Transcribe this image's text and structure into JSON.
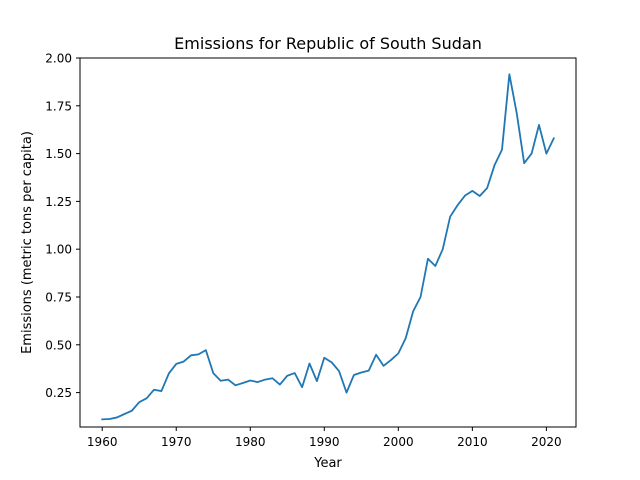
{
  "chart_data": {
    "type": "line",
    "title": "Emissions for Republic of South Sudan",
    "xlabel": "Year",
    "ylabel": "Emissions (metric tons per capita)",
    "xlim": [
      1957,
      2024
    ],
    "ylim": [
      0.07,
      2.0
    ],
    "x_ticks": [
      1960,
      1970,
      1980,
      1990,
      2000,
      2010,
      2020
    ],
    "x_tick_labels": [
      "1960",
      "1970",
      "1980",
      "1990",
      "2000",
      "2010",
      "2020"
    ],
    "y_ticks": [
      0.25,
      0.5,
      0.75,
      1.0,
      1.25,
      1.5,
      1.75,
      2.0
    ],
    "y_tick_labels": [
      "0.25",
      "0.50",
      "0.75",
      "1.00",
      "1.25",
      "1.50",
      "1.75",
      "2.00"
    ],
    "grid": false,
    "series": [
      {
        "color": "#1f77b4",
        "x": [
          1960,
          1961,
          1962,
          1963,
          1964,
          1965,
          1966,
          1967,
          1968,
          1969,
          1970,
          1971,
          1972,
          1973,
          1974,
          1975,
          1976,
          1977,
          1978,
          1979,
          1980,
          1981,
          1982,
          1983,
          1984,
          1985,
          1986,
          1987,
          1988,
          1989,
          1990,
          1991,
          1992,
          1993,
          1994,
          1995,
          1996,
          1997,
          1998,
          1999,
          2000,
          2001,
          2002,
          2003,
          2004,
          2005,
          2006,
          2007,
          2008,
          2009,
          2010,
          2011,
          2012,
          2013,
          2014,
          2015,
          2016,
          2017,
          2018,
          2019,
          2020,
          2021
        ],
        "y": [
          0.11,
          0.112,
          0.12,
          0.138,
          0.155,
          0.2,
          0.22,
          0.265,
          0.258,
          0.35,
          0.4,
          0.412,
          0.445,
          0.45,
          0.472,
          0.352,
          0.312,
          0.318,
          0.288,
          0.3,
          0.313,
          0.305,
          0.318,
          0.325,
          0.292,
          0.338,
          0.352,
          0.278,
          0.402,
          0.31,
          0.432,
          0.408,
          0.362,
          0.25,
          0.342,
          0.355,
          0.365,
          0.448,
          0.39,
          0.42,
          0.455,
          0.535,
          0.675,
          0.75,
          0.95,
          0.912,
          1.0,
          1.17,
          1.23,
          1.28,
          1.305,
          1.278,
          1.32,
          1.44,
          1.52,
          1.915,
          1.71,
          1.45,
          1.5,
          1.65,
          1.5,
          1.58
        ]
      }
    ]
  }
}
